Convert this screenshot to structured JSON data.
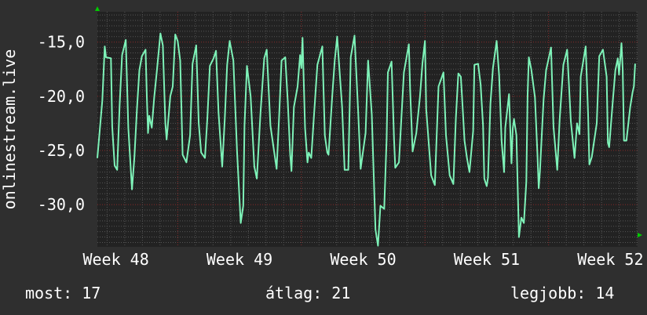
{
  "chart_data": {
    "type": "line",
    "title": "",
    "ylabel": "onlinestream.live",
    "xlabel": "",
    "xlim": [
      47.85,
      52.22
    ],
    "ylim": [
      -33.9,
      -12.2
    ],
    "grid": true,
    "y_ticks": [
      -15,
      -20,
      -25,
      -30
    ],
    "y_tick_labels": [
      "-15,0",
      "-20,0",
      "-25,0",
      "-30,0"
    ],
    "x_ticks": [
      48,
      49,
      50,
      51,
      52
    ],
    "x_tick_labels": [
      "Week 48",
      "Week 49",
      "Week 50",
      "Week 51",
      "Week 52"
    ],
    "colors": {
      "line": "#7ef2b8",
      "background": "#2f2f2f",
      "plot_background": "#222222",
      "major_grid": "#8a2a2a",
      "minor_grid": "#555555",
      "arrow": "#00cc00"
    },
    "series": [
      {
        "x": [
          47.85,
          47.89,
          47.91,
          47.92,
          47.96,
          47.97,
          47.99,
          48.01,
          48.03,
          48.05,
          48.08,
          48.1,
          48.13,
          48.15,
          48.17,
          48.19,
          48.21,
          48.24,
          48.25,
          48.26,
          48.27,
          48.29,
          48.31,
          48.33,
          48.36,
          48.38,
          48.4,
          48.41,
          48.44,
          48.46,
          48.48,
          48.5,
          48.52,
          48.54,
          48.57,
          48.6,
          48.62,
          48.65,
          48.67,
          48.69,
          48.72,
          48.74,
          48.76,
          48.79,
          48.81,
          48.83,
          48.86,
          48.88,
          48.9,
          48.92,
          48.95,
          48.98,
          49.01,
          49.03,
          49.04,
          49.06,
          49.09,
          49.12,
          49.14,
          49.17,
          49.2,
          49.22,
          49.25,
          49.28,
          49.3,
          49.32,
          49.34,
          49.37,
          49.39,
          49.41,
          49.42,
          49.44,
          49.47,
          49.49,
          49.5,
          49.51,
          49.53,
          49.55,
          49.56,
          49.58,
          49.6,
          49.63,
          49.67,
          49.69,
          49.71,
          49.72,
          49.75,
          49.77,
          49.79,
          49.83,
          49.85,
          49.88,
          49.9,
          49.93,
          49.96,
          49.98,
          50.02,
          50.04,
          50.07,
          50.1,
          50.12,
          50.14,
          50.17,
          50.19,
          50.2,
          50.23,
          50.25,
          50.26,
          50.29,
          50.33,
          50.37,
          50.38,
          50.4,
          50.43,
          50.46,
          50.48,
          50.5,
          50.51,
          50.55,
          50.58,
          50.61,
          50.65,
          50.67,
          50.7,
          50.73,
          50.75,
          50.77,
          50.79,
          50.8,
          50.82,
          50.84,
          50.86,
          50.89,
          50.9,
          50.93,
          50.95,
          50.97,
          50.98,
          51.0,
          51.01,
          51.03,
          51.05,
          51.08,
          51.1,
          51.12,
          51.14,
          51.15,
          51.18,
          51.2,
          51.21,
          51.22,
          51.24,
          51.26,
          51.28,
          51.3,
          51.32,
          51.33,
          51.34,
          51.36,
          51.39,
          51.41,
          51.42,
          51.43,
          51.46,
          51.48,
          51.52,
          51.54,
          51.57,
          51.59,
          51.62,
          51.65,
          51.68,
          51.71,
          51.73,
          51.75,
          51.76,
          51.8,
          51.82,
          51.83,
          51.85,
          51.89,
          51.91,
          51.94,
          51.97,
          51.98,
          51.99,
          52.02,
          52.04,
          52.06,
          52.07,
          52.09,
          52.1,
          52.11,
          52.13,
          52.16,
          52.18,
          52.19,
          52.2
        ],
        "y": [
          -25.7,
          -20.4,
          -15.4,
          -16.4,
          -16.5,
          -22.8,
          -26.4,
          -26.8,
          -20.9,
          -16.2,
          -14.8,
          -22.9,
          -28.6,
          -25.6,
          -21.2,
          -17.6,
          -16.3,
          -15.7,
          -20.0,
          -23.4,
          -21.8,
          -22.9,
          -20.1,
          -17.8,
          -14.2,
          -15.3,
          -22.5,
          -24.0,
          -20.0,
          -19.1,
          -14.3,
          -14.9,
          -16.7,
          -25.4,
          -26.1,
          -23.6,
          -17.0,
          -15.3,
          -22.5,
          -25.2,
          -25.7,
          -22.0,
          -17.2,
          -16.5,
          -15.8,
          -21.5,
          -26.5,
          -22.2,
          -17.1,
          -14.9,
          -16.7,
          -25.1,
          -31.7,
          -30.1,
          -22.7,
          -17.2,
          -20.0,
          -26.5,
          -27.6,
          -21.5,
          -16.5,
          -15.7,
          -22.7,
          -25.1,
          -26.7,
          -22.0,
          -16.7,
          -16.4,
          -20.5,
          -25.4,
          -26.9,
          -21.0,
          -19.1,
          -16.2,
          -17.4,
          -14.6,
          -22.9,
          -26.1,
          -25.2,
          -25.7,
          -22.2,
          -17.1,
          -15.4,
          -23.6,
          -25.2,
          -25.4,
          -20.0,
          -16.7,
          -14.5,
          -21.0,
          -26.8,
          -26.8,
          -16.4,
          -14.4,
          -21.5,
          -26.7,
          -23.4,
          -16.7,
          -21.7,
          -32.3,
          -33.8,
          -30.1,
          -30.4,
          -23.9,
          -17.8,
          -16.8,
          -23.9,
          -26.6,
          -26.1,
          -17.8,
          -15.2,
          -19.3,
          -25.1,
          -23.4,
          -20.0,
          -16.9,
          -14.9,
          -21.2,
          -27.3,
          -28.2,
          -19.1,
          -17.8,
          -23.6,
          -27.3,
          -28.1,
          -22.0,
          -17.9,
          -18.2,
          -20.0,
          -24.1,
          -25.7,
          -27.0,
          -23.2,
          -17.1,
          -17.0,
          -18.9,
          -22.7,
          -27.6,
          -28.3,
          -27.5,
          -20.7,
          -17.4,
          -14.9,
          -18.1,
          -24.1,
          -27.0,
          -22.9,
          -19.8,
          -26.2,
          -23.0,
          -22.1,
          -23.6,
          -33.0,
          -31.2,
          -31.7,
          -27.9,
          -20.0,
          -16.4,
          -17.5,
          -20.1,
          -25.4,
          -28.5,
          -27.0,
          -20.3,
          -17.6,
          -15.5,
          -22.8,
          -26.8,
          -22.1,
          -17.1,
          -15.7,
          -22.3,
          -25.7,
          -22.5,
          -23.5,
          -18.2,
          -15.4,
          -21.7,
          -26.3,
          -25.6,
          -22.5,
          -16.3,
          -15.7,
          -18.2,
          -24.3,
          -24.7,
          -20.4,
          -17.6,
          -16.5,
          -18.0,
          -15.1,
          -17.6,
          -24.1,
          -24.1,
          -21.0,
          -19.6,
          -19.1,
          -17.0
        ]
      }
    ]
  },
  "legend": {
    "current": "most: 17",
    "average": "átlag: 21",
    "best": "legjobb: 14"
  }
}
